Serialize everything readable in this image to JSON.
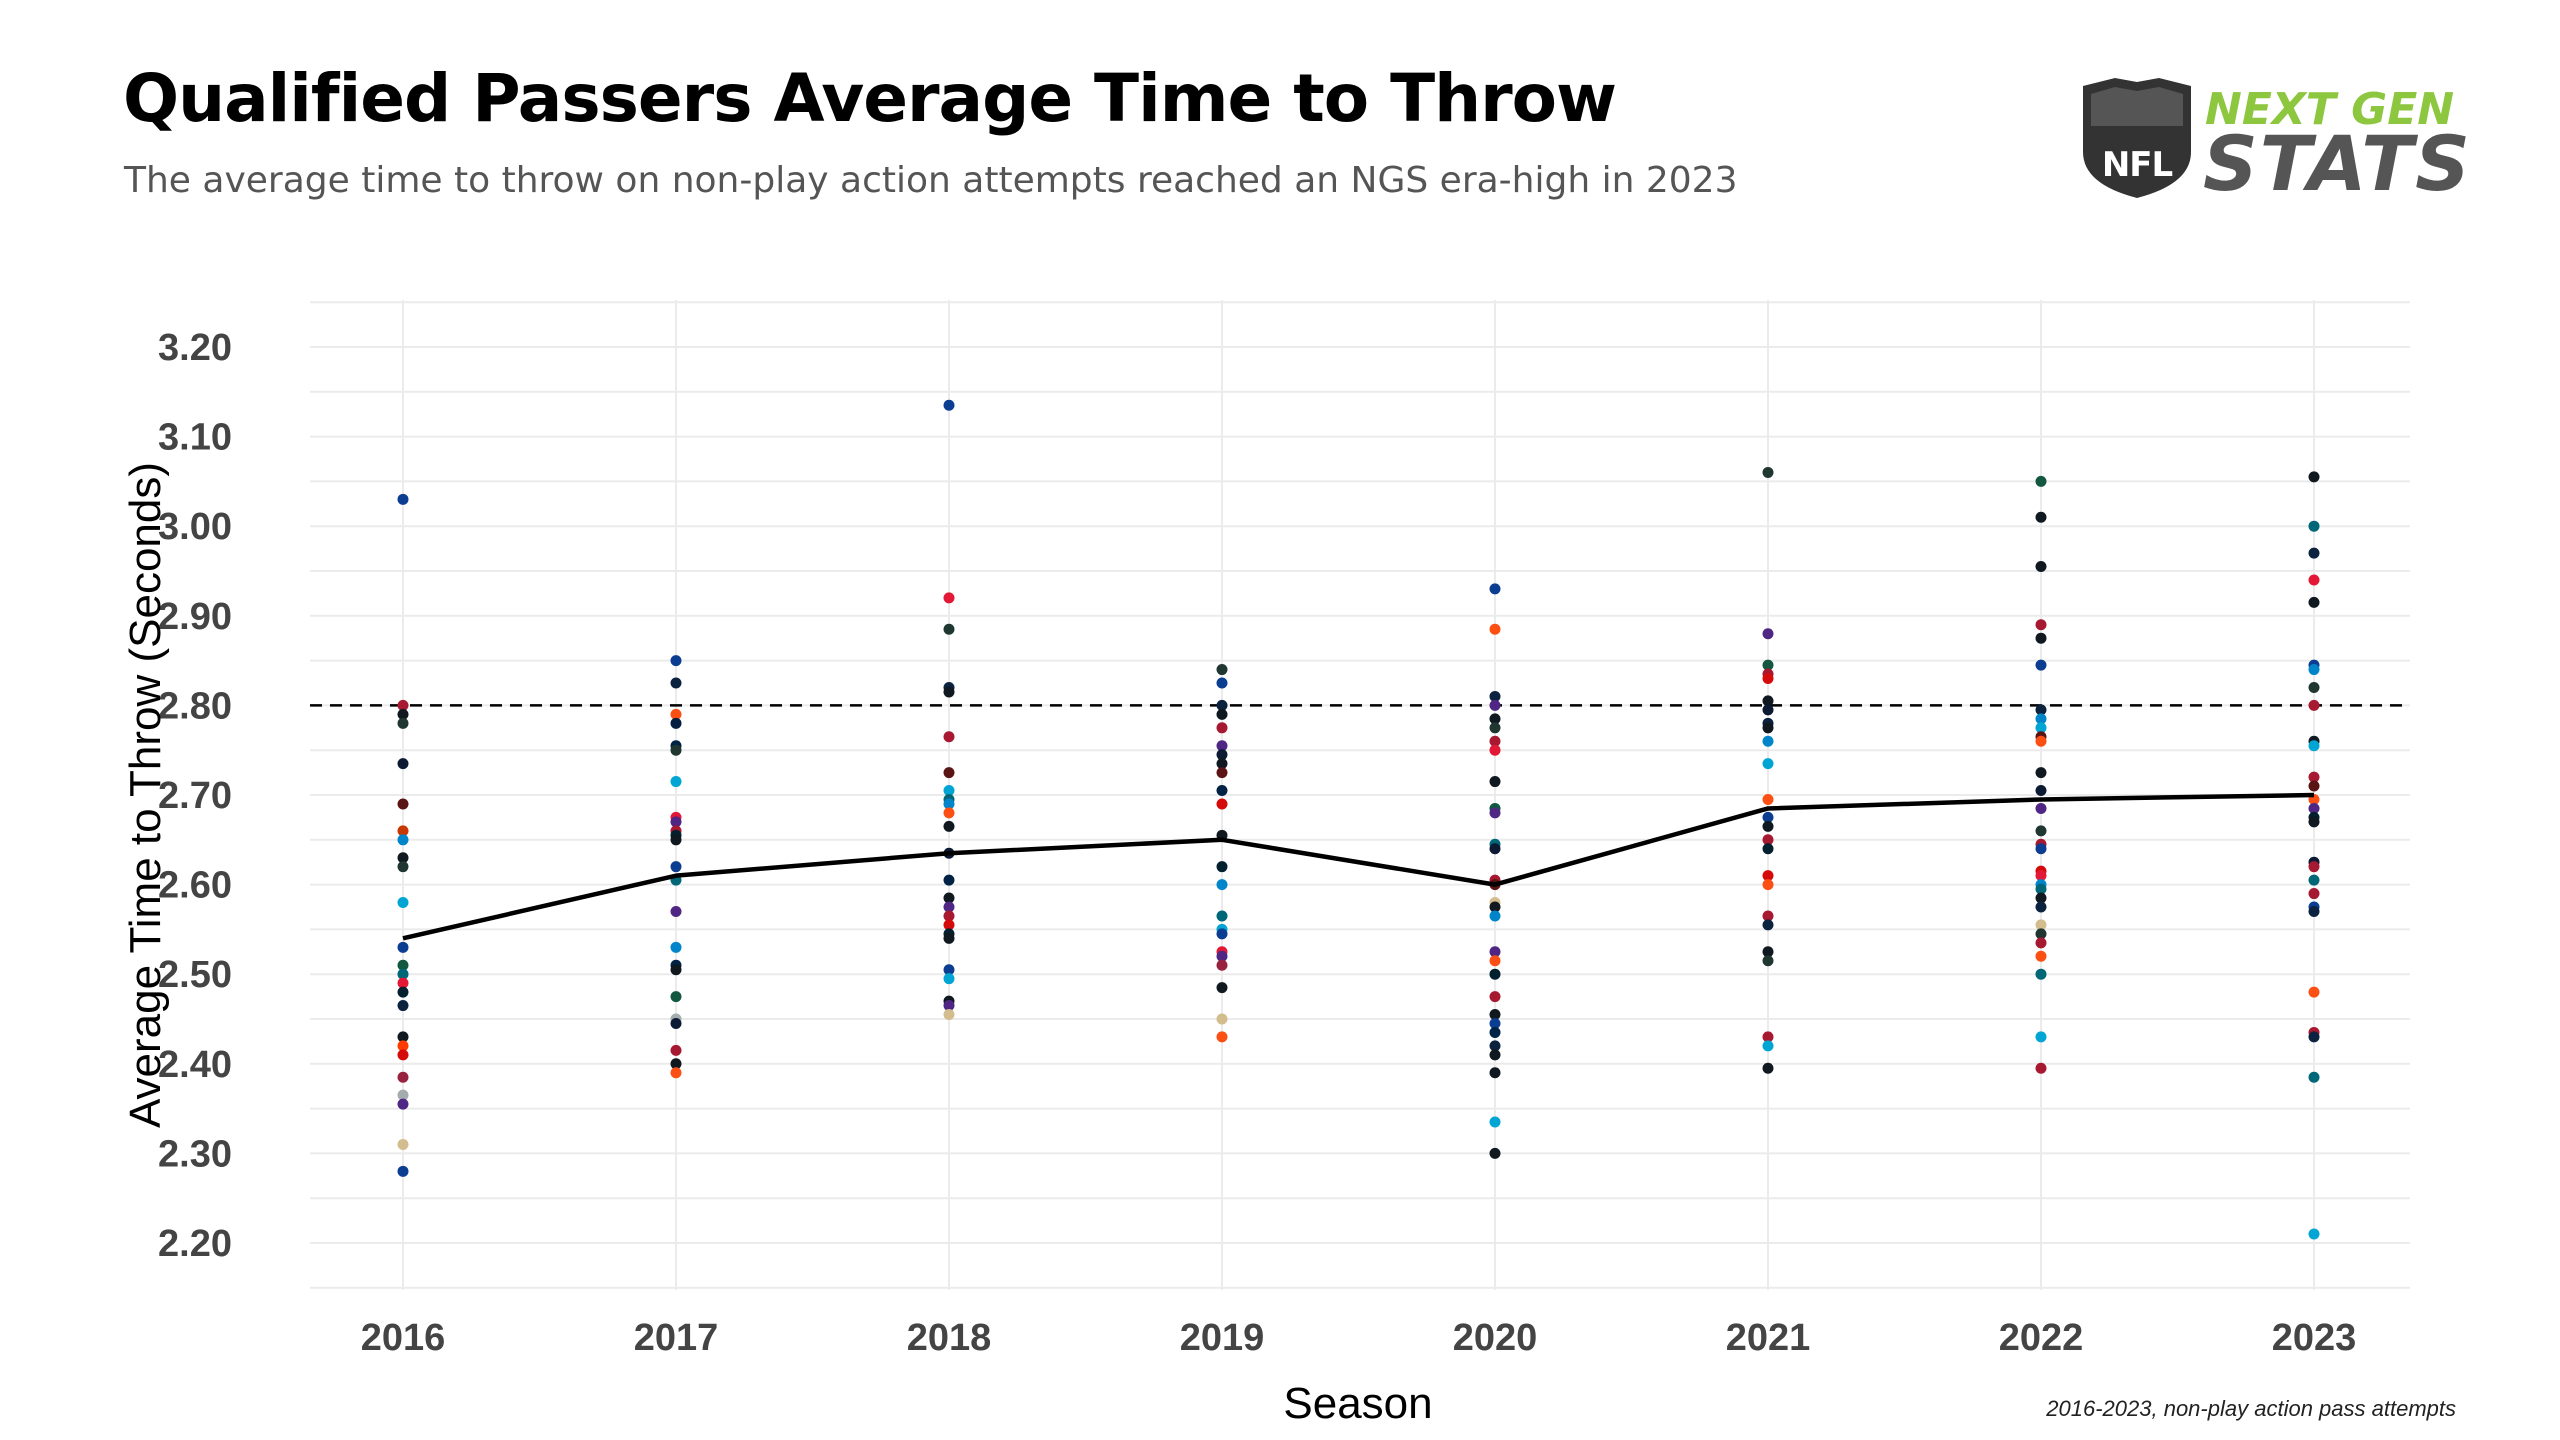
{
  "header": {
    "title": "Qualified Passers Average Time to Throw",
    "subtitle": "The average time to throw on non-play action attempts reached an NGS era-high in 2023"
  },
  "logo": {
    "icon": "nfl-shield-icon",
    "line1": "NEXT GEN",
    "line2": "STATS",
    "shield_text": "NFL",
    "line1_color": "#8dc63f",
    "line2_color": "#555555"
  },
  "footnote": "2016-2023, non-play action pass attempts",
  "chart_data": {
    "type": "scatter",
    "xlabel": "Season",
    "ylabel": "Average Time to Throw (Seconds)",
    "categories": [
      "2016",
      "2017",
      "2018",
      "2019",
      "2020",
      "2021",
      "2022",
      "2023"
    ],
    "ylim": [
      2.15,
      3.25
    ],
    "yticks": [
      2.2,
      2.3,
      2.4,
      2.5,
      2.6,
      2.7,
      2.8,
      2.9,
      3.0,
      3.1,
      3.2
    ],
    "grid": true,
    "reference_line": {
      "y": 2.8,
      "style": "dashed",
      "color": "#000000"
    },
    "average_line": {
      "color": "#000000",
      "values": [
        2.54,
        2.61,
        2.635,
        2.65,
        2.6,
        2.685,
        2.695,
        2.7
      ]
    },
    "series": [
      {
        "x": "2016",
        "values": [
          3.03,
          2.8,
          2.79,
          2.78,
          2.735,
          2.69,
          2.66,
          2.65,
          2.63,
          2.62,
          2.58,
          2.53,
          2.51,
          2.5,
          2.49,
          2.48,
          2.465,
          2.43,
          2.42,
          2.41,
          2.385,
          2.365,
          2.355,
          2.31,
          2.28
        ],
        "colors": [
          "#0b3d91",
          "#a71930",
          "#101820",
          "#203731",
          "#0c1a33",
          "#5a1414",
          "#c83803",
          "#0085ca",
          "#101820",
          "#203731",
          "#00a5d3",
          "#0b3d91",
          "#125740",
          "#006778",
          "#e31837",
          "#03202f",
          "#0c2340",
          "#101820",
          "#ff3c00",
          "#d50a0a",
          "#97233f",
          "#a5acaf",
          "#4f2683",
          "#d3bc8d",
          "#0b3d91"
        ]
      },
      {
        "x": "2017",
        "values": [
          2.85,
          2.825,
          2.79,
          2.78,
          2.755,
          2.75,
          2.715,
          2.675,
          2.67,
          2.66,
          2.655,
          2.65,
          2.62,
          2.605,
          2.57,
          2.53,
          2.51,
          2.505,
          2.475,
          2.45,
          2.445,
          2.415,
          2.4,
          2.39
        ],
        "colors": [
          "#0b3d91",
          "#0c2340",
          "#fb4f14",
          "#041e42",
          "#002244",
          "#203731",
          "#00a5d3",
          "#e31837",
          "#4f2683",
          "#a71930",
          "#03202f",
          "#101820",
          "#0b3d91",
          "#006778",
          "#4f2683",
          "#0085ca",
          "#002244",
          "#101820",
          "#125740",
          "#a5acaf",
          "#0c1a33",
          "#a71930",
          "#101820",
          "#fb4f14"
        ]
      },
      {
        "x": "2018",
        "values": [
          3.135,
          2.92,
          2.885,
          2.82,
          2.815,
          2.765,
          2.725,
          2.705,
          2.695,
          2.69,
          2.68,
          2.665,
          2.635,
          2.605,
          2.585,
          2.575,
          2.565,
          2.555,
          2.545,
          2.54,
          2.505,
          2.495,
          2.47,
          2.465,
          2.455
        ],
        "colors": [
          "#0b3d91",
          "#e31837",
          "#203731",
          "#0c2340",
          "#101820",
          "#a71930",
          "#5a1414",
          "#00a5d3",
          "#006778",
          "#0085ca",
          "#fb4f14",
          "#101820",
          "#0c1a33",
          "#002244",
          "#101820",
          "#4f2683",
          "#a71930",
          "#d50a0a",
          "#03202f",
          "#101820",
          "#0b3d91",
          "#00a5d3",
          "#101820",
          "#4f2683",
          "#d3bc8d"
        ]
      },
      {
        "x": "2019",
        "values": [
          2.84,
          2.825,
          2.8,
          2.79,
          2.775,
          2.755,
          2.745,
          2.735,
          2.725,
          2.705,
          2.69,
          2.655,
          2.62,
          2.6,
          2.565,
          2.55,
          2.545,
          2.525,
          2.52,
          2.51,
          2.485,
          2.45,
          2.43
        ],
        "colors": [
          "#203731",
          "#0b3d91",
          "#0c2340",
          "#101820",
          "#a71930",
          "#4f2683",
          "#0c1a33",
          "#101820",
          "#5a1414",
          "#002244",
          "#d50a0a",
          "#101820",
          "#03202f",
          "#0085ca",
          "#006778",
          "#00a5d3",
          "#0b3d91",
          "#e31837",
          "#4f2683",
          "#97233f",
          "#101820",
          "#d3bc8d",
          "#fb4f14"
        ]
      },
      {
        "x": "2020",
        "values": [
          2.93,
          2.885,
          2.81,
          2.8,
          2.785,
          2.775,
          2.76,
          2.75,
          2.715,
          2.685,
          2.68,
          2.645,
          2.64,
          2.605,
          2.6,
          2.58,
          2.575,
          2.565,
          2.525,
          2.515,
          2.5,
          2.475,
          2.455,
          2.445,
          2.435,
          2.42,
          2.41,
          2.39,
          2.335,
          2.3
        ],
        "colors": [
          "#0b3d91",
          "#fb4f14",
          "#0c2340",
          "#4f2683",
          "#101820",
          "#203731",
          "#a71930",
          "#e31837",
          "#101820",
          "#125740",
          "#4f2683",
          "#006778",
          "#0c1a33",
          "#a71930",
          "#5a1414",
          "#d3bc8d",
          "#101820",
          "#0085ca",
          "#4f2683",
          "#fb4f14",
          "#03202f",
          "#a71930",
          "#101820",
          "#0b3d91",
          "#002244",
          "#0c2340",
          "#101820",
          "#101820",
          "#00a5d3",
          "#101820"
        ]
      },
      {
        "x": "2021",
        "values": [
          3.06,
          2.88,
          2.845,
          2.835,
          2.83,
          2.805,
          2.795,
          2.78,
          2.775,
          2.76,
          2.735,
          2.695,
          2.675,
          2.665,
          2.65,
          2.64,
          2.61,
          2.6,
          2.565,
          2.555,
          2.525,
          2.515,
          2.43,
          2.42,
          2.395
        ],
        "colors": [
          "#203731",
          "#4f2683",
          "#125740",
          "#a71930",
          "#d50a0a",
          "#101820",
          "#0c1a33",
          "#0c2340",
          "#101820",
          "#0085ca",
          "#00a5d3",
          "#fb4f14",
          "#0b3d91",
          "#101820",
          "#a71930",
          "#03202f",
          "#d50a0a",
          "#fb4f14",
          "#a71930",
          "#0c2340",
          "#101820",
          "#203731",
          "#a71930",
          "#00a5d3",
          "#101820"
        ]
      },
      {
        "x": "2022",
        "values": [
          3.05,
          3.01,
          2.955,
          2.89,
          2.875,
          2.845,
          2.795,
          2.785,
          2.775,
          2.765,
          2.76,
          2.725,
          2.705,
          2.685,
          2.66,
          2.645,
          2.64,
          2.615,
          2.61,
          2.6,
          2.595,
          2.585,
          2.575,
          2.555,
          2.545,
          2.535,
          2.52,
          2.5,
          2.43,
          2.395
        ],
        "colors": [
          "#125740",
          "#101820",
          "#101820",
          "#a71930",
          "#101820",
          "#0b3d91",
          "#0c2340",
          "#0085ca",
          "#00a5d3",
          "#5a1414",
          "#fb4f14",
          "#101820",
          "#0c1a33",
          "#4f2683",
          "#203731",
          "#a71930",
          "#0b3d91",
          "#d50a0a",
          "#e31837",
          "#0085ca",
          "#006778",
          "#101820",
          "#0c2340",
          "#d3bc8d",
          "#203731",
          "#a71930",
          "#fb4f14",
          "#006778",
          "#00a5d3",
          "#a71930"
        ]
      },
      {
        "x": "2023",
        "values": [
          3.055,
          3.0,
          2.97,
          2.94,
          2.915,
          2.845,
          2.84,
          2.82,
          2.8,
          2.76,
          2.755,
          2.72,
          2.71,
          2.695,
          2.685,
          2.675,
          2.67,
          2.625,
          2.62,
          2.605,
          2.59,
          2.575,
          2.57,
          2.48,
          2.435,
          2.43,
          2.385,
          2.21
        ],
        "colors": [
          "#101820",
          "#006778",
          "#0c2340",
          "#e31837",
          "#101820",
          "#0b3d91",
          "#0085ca",
          "#203731",
          "#a71930",
          "#101820",
          "#00a5d3",
          "#a71930",
          "#5a1414",
          "#fb4f14",
          "#4f2683",
          "#03202f",
          "#101820",
          "#0c1a33",
          "#a71930",
          "#006778",
          "#a71930",
          "#0b3d91",
          "#0c2340",
          "#fb4f14",
          "#a71930",
          "#0c2340",
          "#006778",
          "#00a5d3"
        ]
      }
    ]
  }
}
